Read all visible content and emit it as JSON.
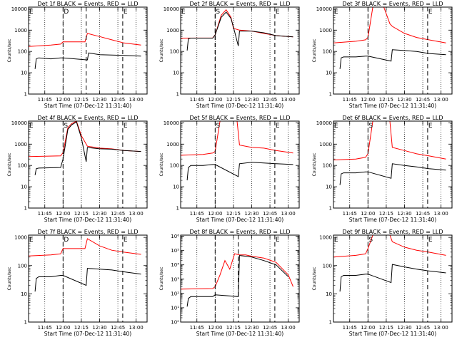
{
  "chart_data": [
    {
      "type": "line",
      "title": "Det 1f BLACK = Events, RED = LLD",
      "xlabel": "Start Time (07-Dec-12 11:31:40)",
      "ylabel": "Counts/sec",
      "x_ticks": [
        "11:45",
        "12:00",
        "12:15",
        "12:30",
        "12:45",
        "13:00"
      ],
      "y_ticks": [
        "1",
        "10",
        "100",
        "1000",
        "10000"
      ],
      "y_scale": "log",
      "xlim": [
        "11:31:40",
        "13:09"
      ],
      "ylim": [
        1,
        12000
      ],
      "markers": [
        {
          "label": "E",
          "time": "11:31:40"
        },
        {
          "label": "D",
          "time": "12:00"
        },
        {
          "label": "",
          "time": "12:19"
        },
        {
          "label": "E",
          "time": "12:49"
        }
      ],
      "series": [
        {
          "color": "#ff0000",
          "x": [
            "11:31:40",
            "11:50",
            "11:58",
            "12:00",
            "12:18",
            "12:20",
            "12:30",
            "12:40",
            "12:50",
            "13:04"
          ],
          "values": [
            170,
            200,
            220,
            280,
            280,
            700,
            500,
            350,
            250,
            200
          ]
        },
        {
          "color": "#000000",
          "x": [
            "11:37",
            "11:38",
            "11:40",
            "11:50",
            "11:58",
            "12:00",
            "12:20",
            "12:21",
            "12:30",
            "12:50",
            "13:04"
          ],
          "values": [
            15,
            45,
            50,
            45,
            50,
            50,
            40,
            85,
            70,
            65,
            60
          ]
        }
      ]
    },
    {
      "type": "line",
      "title": "Det 2f BLACK = Events, RED = LLD",
      "xlabel": "Start Time (07-Dec-12 11:31:40)",
      "ylabel": "Counts/sec",
      "x_ticks": [
        "11:45",
        "12:00",
        "12:15",
        "12:30",
        "12:45",
        "13:00"
      ],
      "y_ticks": [
        "1",
        "10",
        "100",
        "1000",
        "10000"
      ],
      "y_scale": "log",
      "xlim": [
        "11:31:40",
        "13:09"
      ],
      "ylim": [
        1,
        12000
      ],
      "markers": [
        {
          "label": "E",
          "time": "11:31:40"
        },
        {
          "label": "",
          "time": "12:00"
        },
        {
          "label": "S",
          "time": "12:00"
        },
        {
          "label": "E",
          "time": "12:49"
        }
      ],
      "series": [
        {
          "color": "#ff0000",
          "x": [
            "11:31:40",
            "11:58",
            "12:00",
            "12:05",
            "12:09",
            "12:13",
            "12:15",
            "12:20",
            "12:30",
            "12:40",
            "12:50",
            "13:04"
          ],
          "values": [
            420,
            430,
            600,
            5000,
            9000,
            4000,
            1200,
            1000,
            900,
            700,
            550,
            480
          ]
        },
        {
          "color": "#000000",
          "x": [
            "11:37",
            "11:38",
            "11:40",
            "11:58",
            "12:00",
            "12:05",
            "12:09",
            "12:13",
            "12:15",
            "12:19",
            "12:20",
            "12:30",
            "12:40",
            "12:50",
            "13:04"
          ],
          "values": [
            110,
            400,
            420,
            420,
            600,
            4000,
            7000,
            3500,
            1400,
            180,
            900,
            900,
            750,
            550,
            480
          ]
        }
      ]
    },
    {
      "type": "line",
      "title": "Det 3f BLACK = Events, RED = LLD",
      "xlabel": "Start Time (07-Dec-12 11:31:40)",
      "ylabel": "Counts/sec",
      "x_ticks": [
        "11:45",
        "12:00",
        "12:15",
        "12:30",
        "12:45",
        "13:00"
      ],
      "y_ticks": [
        "1",
        "10",
        "100",
        "1000",
        "10000"
      ],
      "y_scale": "log",
      "xlim": [
        "11:31:40",
        "13:09"
      ],
      "ylim": [
        1,
        12000
      ],
      "markers": [
        {
          "label": "E",
          "time": "11:31:40"
        },
        {
          "label": "",
          "time": "12:00"
        },
        {
          "label": "E",
          "time": "12:49"
        }
      ],
      "series": [
        {
          "color": "#ff0000",
          "x": [
            "11:31:40",
            "11:50",
            "11:58",
            "12:00",
            "12:04",
            "12:13",
            "12:18",
            "12:20",
            "12:30",
            "12:40",
            "12:50",
            "13:04"
          ],
          "values": [
            250,
            300,
            350,
            450,
            12000,
            12000,
            2000,
            1500,
            700,
            450,
            350,
            250
          ]
        },
        {
          "color": "#000000",
          "x": [
            "11:37",
            "11:38",
            "11:40",
            "11:50",
            "11:58",
            "12:00",
            "12:19",
            "12:20",
            "12:30",
            "12:40",
            "12:50",
            "13:04"
          ],
          "values": [
            15,
            50,
            55,
            55,
            60,
            60,
            35,
            120,
            110,
            100,
            80,
            70
          ]
        }
      ]
    },
    {
      "type": "line",
      "title": "Det 4f BLACK = Events, RED = LLD",
      "xlabel": "Start Time (07-Dec-12 11:31:40)",
      "ylabel": "Counts/sec",
      "x_ticks": [
        "11:45",
        "12:00",
        "12:15",
        "12:30",
        "12:45",
        "13:00"
      ],
      "y_ticks": [
        "1",
        "10",
        "100",
        "1000",
        "10000"
      ],
      "y_scale": "log",
      "xlim": [
        "11:31:40",
        "13:09"
      ],
      "ylim": [
        1,
        12000
      ],
      "markers": [
        {
          "label": "E",
          "time": "11:31:40"
        },
        {
          "label": "S",
          "time": "12:00"
        },
        {
          "label": "E",
          "time": "12:49"
        }
      ],
      "series": [
        {
          "color": "#ff0000",
          "x": [
            "11:31:40",
            "11:58",
            "12:00",
            "12:04",
            "12:07",
            "12:11",
            "12:15",
            "12:20",
            "12:30",
            "12:40",
            "12:50",
            "13:04"
          ],
          "values": [
            260,
            280,
            400,
            6000,
            9000,
            12000,
            2500,
            800,
            650,
            600,
            500,
            450
          ]
        },
        {
          "color": "#000000",
          "x": [
            "11:37",
            "11:38",
            "11:40",
            "11:58",
            "12:00",
            "12:04",
            "12:07",
            "12:11",
            "12:15",
            "12:19",
            "12:20",
            "12:30",
            "12:40",
            "12:50",
            "13:04"
          ],
          "values": [
            35,
            70,
            75,
            80,
            200,
            5000,
            8000,
            11000,
            2000,
            150,
            700,
            600,
            580,
            500,
            450
          ]
        }
      ]
    },
    {
      "type": "line",
      "title": "Det 5f BLACK = Events, RED = LLD",
      "xlabel": "Start Time (07-Dec-12 11:31:40)",
      "ylabel": "Counts/sec",
      "x_ticks": [
        "11:45",
        "12:00",
        "12:15",
        "12:30",
        "12:45",
        "13:00"
      ],
      "y_ticks": [
        "1",
        "10",
        "100",
        "1000",
        "10000"
      ],
      "y_scale": "log",
      "xlim": [
        "11:31:40",
        "13:09"
      ],
      "ylim": [
        1,
        12000
      ],
      "markers": [
        {
          "label": "S",
          "time": "12:00"
        },
        {
          "label": "E",
          "time": "12:49"
        }
      ],
      "series": [
        {
          "color": "#ff0000",
          "x": [
            "11:31:40",
            "11:50",
            "11:58",
            "12:00",
            "12:04",
            "12:18",
            "12:20",
            "12:30",
            "12:40",
            "12:50",
            "13:04"
          ],
          "values": [
            300,
            330,
            380,
            450,
            12000,
            12000,
            900,
            700,
            650,
            500,
            380
          ]
        },
        {
          "color": "#000000",
          "x": [
            "11:37",
            "11:38",
            "11:40",
            "11:50",
            "11:58",
            "12:00",
            "12:19",
            "12:20",
            "12:30",
            "12:40",
            "12:50",
            "13:04"
          ],
          "values": [
            20,
            80,
            100,
            100,
            110,
            110,
            30,
            120,
            140,
            130,
            120,
            110
          ]
        }
      ]
    },
    {
      "type": "line",
      "title": "Det 6f BLACK = Events, RED = LLD",
      "xlabel": "Start Time (07-Dec-12 11:31:40)",
      "ylabel": "Counts/sec",
      "x_ticks": [
        "11:45",
        "12:00",
        "12:15",
        "12:30",
        "12:45",
        "13:00"
      ],
      "y_ticks": [
        "1",
        "10",
        "100",
        "1000",
        "10000"
      ],
      "y_scale": "log",
      "xlim": [
        "11:31:40",
        "13:09"
      ],
      "ylim": [
        1,
        12000
      ],
      "markers": [
        {
          "label": "E",
          "time": "11:31:40"
        },
        {
          "label": "S",
          "time": "12:00"
        },
        {
          "label": "E",
          "time": "12:49"
        }
      ],
      "series": [
        {
          "color": "#ff0000",
          "x": [
            "11:31:40",
            "11:50",
            "11:58",
            "12:00",
            "12:04",
            "12:18",
            "12:20",
            "12:30",
            "12:40",
            "12:50",
            "13:04"
          ],
          "values": [
            180,
            200,
            240,
            350,
            12000,
            12000,
            700,
            500,
            350,
            280,
            200
          ]
        },
        {
          "color": "#000000",
          "x": [
            "11:37",
            "11:38",
            "11:40",
            "11:50",
            "11:58",
            "12:00",
            "12:19",
            "12:20",
            "12:30",
            "12:40",
            "12:50",
            "13:04"
          ],
          "values": [
            12,
            40,
            45,
            45,
            50,
            50,
            25,
            120,
            100,
            85,
            70,
            60
          ]
        }
      ]
    },
    {
      "type": "line",
      "title": "Det 7f BLACK = Events, RED = LLD",
      "xlabel": "Start Time (07-Dec-12 11:31:40)",
      "ylabel": "Counts/sec",
      "x_ticks": [
        "11:45",
        "12:00",
        "12:15",
        "12:30",
        "12:45",
        "13:00"
      ],
      "y_ticks": [
        "1",
        "10",
        "100",
        "1000"
      ],
      "y_scale": "log",
      "xlim": [
        "11:31:40",
        "13:09"
      ],
      "ylim": [
        1,
        1200
      ],
      "markers": [
        {
          "label": "E",
          "time": "11:31:40"
        },
        {
          "label": "D",
          "time": "12:00"
        },
        {
          "label": "E",
          "time": "12:49"
        }
      ],
      "series": [
        {
          "color": "#ff0000",
          "x": [
            "11:31:40",
            "11:50",
            "11:58",
            "12:00",
            "12:18",
            "12:20",
            "12:30",
            "12:40",
            "12:50",
            "13:04"
          ],
          "values": [
            220,
            240,
            260,
            400,
            400,
            900,
            500,
            350,
            300,
            250
          ]
        },
        {
          "color": "#000000",
          "x": [
            "11:37",
            "11:38",
            "11:40",
            "11:50",
            "11:58",
            "12:00",
            "12:19",
            "12:20",
            "12:30",
            "12:40",
            "12:50",
            "13:04"
          ],
          "values": [
            12,
            35,
            40,
            40,
            45,
            45,
            20,
            80,
            75,
            70,
            60,
            50
          ]
        }
      ]
    },
    {
      "type": "line",
      "title": "Det 8f BLACK = Events, RED = LLD",
      "xlabel": "Start Time (07-Dec-12 11:31:40)",
      "ylabel": "Counts/sec",
      "x_ticks": [
        "11:45",
        "12:00",
        "12:15",
        "12:30",
        "12:45",
        "13:00"
      ],
      "y_ticks": [
        "10⁰",
        "10¹",
        "10²",
        "10³",
        "10⁴",
        "10⁵",
        "10⁶"
      ],
      "y_scale": "log",
      "xlim": [
        "11:31:40",
        "13:09"
      ],
      "ylim": [
        1,
        1200000
      ],
      "markers": [
        {
          "label": "",
          "time": "12:00"
        },
        {
          "label": "",
          "time": "12:19"
        },
        {
          "label": "E",
          "time": "12:49"
        }
      ],
      "series": [
        {
          "color": "#ff0000",
          "x": [
            "11:31:40",
            "11:58",
            "12:00",
            "12:04",
            "12:08",
            "12:12",
            "12:16",
            "12:20",
            "12:25",
            "12:30",
            "12:40",
            "12:50",
            "13:00",
            "13:04"
          ],
          "values": [
            200,
            220,
            300,
            2000,
            20000,
            5000,
            60000,
            50000,
            50000,
            40000,
            30000,
            15000,
            2000,
            300
          ]
        },
        {
          "color": "#000000",
          "x": [
            "11:37",
            "11:38",
            "11:40",
            "11:58",
            "12:00",
            "12:19",
            "12:20",
            "12:25",
            "12:30",
            "12:40",
            "12:50",
            "13:00"
          ],
          "values": [
            12,
            45,
            60,
            60,
            80,
            60,
            45000,
            40000,
            35000,
            20000,
            10000,
            1500
          ]
        }
      ]
    },
    {
      "type": "line",
      "title": "Det 9f BLACK = Events, RED = LLD",
      "xlabel": "Start Time (07-Dec-12 11:31:40)",
      "ylabel": "Counts/sec",
      "x_ticks": [
        "11:45",
        "12:00",
        "12:15",
        "12:30",
        "12:45",
        "13:00"
      ],
      "y_ticks": [
        "1",
        "10",
        "100",
        "1000"
      ],
      "y_scale": "log",
      "xlim": [
        "11:31:40",
        "13:09"
      ],
      "ylim": [
        1,
        1200
      ],
      "markers": [
        {
          "label": "E",
          "time": "11:31:40"
        },
        {
          "label": "S",
          "time": "12:00"
        },
        {
          "label": "E",
          "time": "12:49"
        }
      ],
      "series": [
        {
          "color": "#ff0000",
          "x": [
            "11:31:40",
            "11:50",
            "11:58",
            "12:00",
            "12:04",
            "12:18",
            "12:20",
            "12:30",
            "12:40",
            "12:50",
            "13:04"
          ],
          "values": [
            200,
            230,
            260,
            400,
            1200,
            1200,
            700,
            450,
            350,
            300,
            230
          ]
        },
        {
          "color": "#000000",
          "x": [
            "11:37",
            "11:38",
            "11:40",
            "11:50",
            "11:58",
            "12:00",
            "12:19",
            "12:20",
            "12:30",
            "12:40",
            "12:50",
            "13:04"
          ],
          "values": [
            12,
            40,
            45,
            45,
            50,
            50,
            25,
            110,
            90,
            75,
            65,
            55
          ]
        }
      ]
    }
  ]
}
